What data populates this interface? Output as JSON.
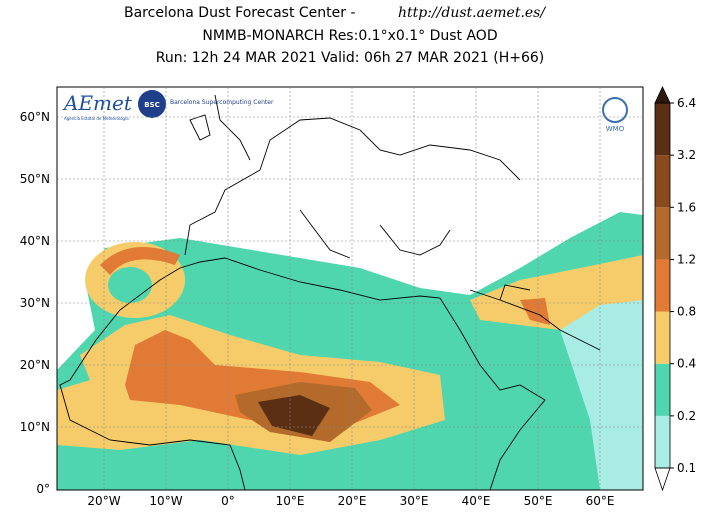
{
  "header": {
    "line1": "Barcelona Dust Forecast Center - ",
    "url": "http://dust.aemet.es/",
    "line2": "NMMB-MONARCH   Res:0.1°x0.1°   Dust AOD",
    "line3": "Run: 12h 24 MAR 2021   Valid: 06h 27 MAR 2021 (H+66)"
  },
  "latitude_labels": [
    "60°N",
    "50°N",
    "40°N",
    "30°N",
    "20°N",
    "10°N",
    "0°"
  ],
  "longitude_labels": [
    "20°W",
    "10°W",
    "0°",
    "10°E",
    "20°E",
    "30°E",
    "40°E",
    "50°E",
    "60°E"
  ],
  "colorbar": {
    "labels": [
      "0.1",
      "0.2",
      "0.4",
      "0.8",
      "1.2",
      "1.6",
      "3.2",
      "6.4"
    ],
    "colors": [
      "#a8ece4",
      "#4fd6ae",
      "#f6cc6b",
      "#e07a35",
      "#b36a2a",
      "#8a4a1e",
      "#5a2f14"
    ],
    "under_color": "#ffffff",
    "over_color": "#2e1a0c"
  },
  "logos": {
    "aemet": "AEmet",
    "aemet_sub": "Agencia Estatal de Meteorología",
    "bsc": "BSC",
    "bsc_name": "Barcelona Supercomputing Center",
    "wmo": "WMO"
  }
}
